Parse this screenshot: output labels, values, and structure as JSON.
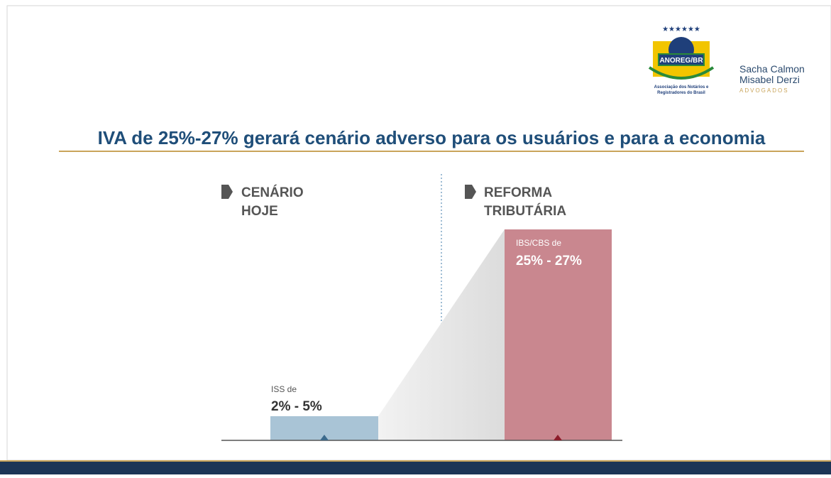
{
  "logo": {
    "stars": "★★★★★★",
    "badge": "ANOREG/BR",
    "caption_line1": "Associação dos Notários e",
    "caption_line2": "Registradores do Brasil"
  },
  "firm": {
    "line1": "Sacha Calmon",
    "line2": "Misabel Derzi",
    "line3": "ADVOGADOS"
  },
  "title": "IVA de 25%-27% gerará cenário adverso para os usuários e para a economia",
  "columns": [
    {
      "heading_line1": "CENÁRIO",
      "heading_line2": "HOJE",
      "label": "ISS de",
      "rate": "2% - 5%"
    },
    {
      "heading_line1": "REFORMA",
      "heading_line2": "TRIBUTÁRIA",
      "label": "IBS/CBS de",
      "rate": "25% - 27%"
    }
  ]
}
